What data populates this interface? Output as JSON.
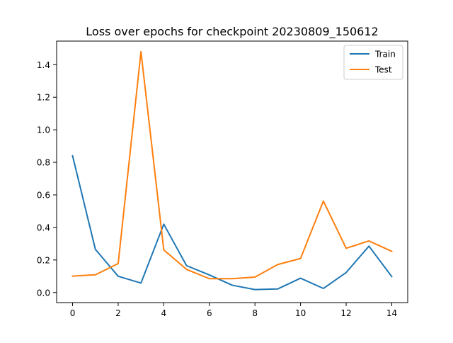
{
  "chart_data": {
    "type": "line",
    "title": "Loss over epochs for checkpoint 20230809_150612",
    "xlabel": "",
    "ylabel": "",
    "x": [
      0,
      1,
      2,
      3,
      4,
      5,
      6,
      7,
      8,
      9,
      10,
      11,
      12,
      13,
      14
    ],
    "xlim": [
      -0.7,
      14.7
    ],
    "ylim": [
      -0.062,
      1.545
    ],
    "xticks": [
      0,
      2,
      4,
      6,
      8,
      10,
      12,
      14
    ],
    "yticks": [
      0.0,
      0.2,
      0.4,
      0.6,
      0.8,
      1.0,
      1.2,
      1.4
    ],
    "ytick_labels": [
      "0.0",
      "0.2",
      "0.4",
      "0.6",
      "0.8",
      "1.0",
      "1.2",
      "1.4"
    ],
    "grid": false,
    "legend_position": "top-right",
    "series": [
      {
        "name": "Train",
        "color": "#1f77b4",
        "values": [
          0.84,
          0.265,
          0.1,
          0.058,
          0.42,
          0.165,
          0.108,
          0.045,
          0.018,
          0.022,
          0.088,
          0.025,
          0.123,
          0.285,
          0.098
        ]
      },
      {
        "name": "Test",
        "color": "#ff7f0e",
        "values": [
          0.101,
          0.109,
          0.178,
          1.48,
          0.262,
          0.142,
          0.085,
          0.085,
          0.095,
          0.172,
          0.209,
          0.562,
          0.272,
          0.317,
          0.253
        ]
      }
    ]
  }
}
